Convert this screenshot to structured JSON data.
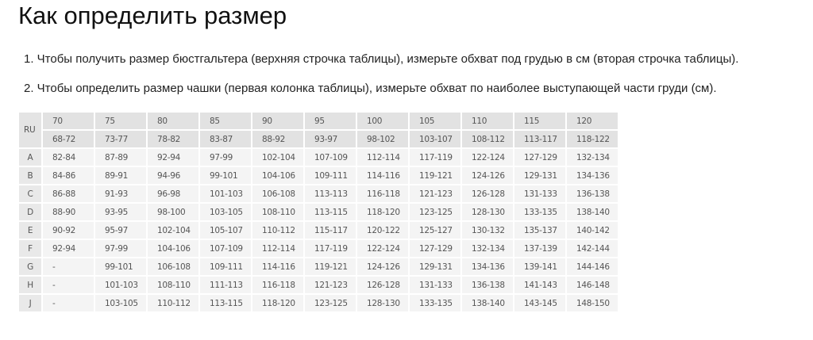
{
  "title": "Как определить размер",
  "instructions": [
    "1. Чтобы получить размер бюстгальтера (верхняя строчка таблицы), измерьте обхват под грудью в см (вторая строчка таблицы).",
    "2. Чтобы определить размер чашки (первая колонка таблицы), измерьте обхват по наиболее выступающей части груди (см)."
  ],
  "table": {
    "corner": "RU",
    "bands": [
      "70",
      "75",
      "80",
      "85",
      "90",
      "95",
      "100",
      "105",
      "110",
      "115",
      "120"
    ],
    "underbust": [
      "68-72",
      "73-77",
      "78-82",
      "83-87",
      "88-92",
      "93-97",
      "98-102",
      "103-107",
      "108-112",
      "113-117",
      "118-122"
    ],
    "rows": [
      {
        "cup": "A",
        "values": [
          "82-84",
          "87-89",
          "92-94",
          "97-99",
          "102-104",
          "107-109",
          "112-114",
          "117-119",
          "122-124",
          "127-129",
          "132-134"
        ]
      },
      {
        "cup": "B",
        "values": [
          "84-86",
          "89-91",
          "94-96",
          "99-101",
          "104-106",
          "109-111",
          "114-116",
          "119-121",
          "124-126",
          "129-131",
          "134-136"
        ]
      },
      {
        "cup": "C",
        "values": [
          "86-88",
          "91-93",
          "96-98",
          "101-103",
          "106-108",
          "113-113",
          "116-118",
          "121-123",
          "126-128",
          "131-133",
          "136-138"
        ]
      },
      {
        "cup": "D",
        "values": [
          "88-90",
          "93-95",
          "98-100",
          "103-105",
          "108-110",
          "113-115",
          "118-120",
          "123-125",
          "128-130",
          "133-135",
          "138-140"
        ]
      },
      {
        "cup": "E",
        "values": [
          "90-92",
          "95-97",
          "102-104",
          "105-107",
          "110-112",
          "115-117",
          "120-122",
          "125-127",
          "130-132",
          "135-137",
          "140-142"
        ]
      },
      {
        "cup": "F",
        "values": [
          "92-94",
          "97-99",
          "104-106",
          "107-109",
          "112-114",
          "117-119",
          "122-124",
          "127-129",
          "132-134",
          "137-139",
          "142-144"
        ]
      },
      {
        "cup": "G",
        "values": [
          "-",
          "99-101",
          "106-108",
          "109-111",
          "114-116",
          "119-121",
          "124-126",
          "129-131",
          "134-136",
          "139-141",
          "144-146"
        ]
      },
      {
        "cup": "H",
        "values": [
          "-",
          "101-103",
          "108-110",
          "111-113",
          "116-118",
          "121-123",
          "126-128",
          "131-133",
          "136-138",
          "141-143",
          "146-148"
        ]
      },
      {
        "cup": "J",
        "values": [
          "-",
          "103-105",
          "110-112",
          "113-115",
          "118-120",
          "123-125",
          "128-130",
          "133-135",
          "138-140",
          "143-145",
          "148-150"
        ]
      }
    ]
  }
}
